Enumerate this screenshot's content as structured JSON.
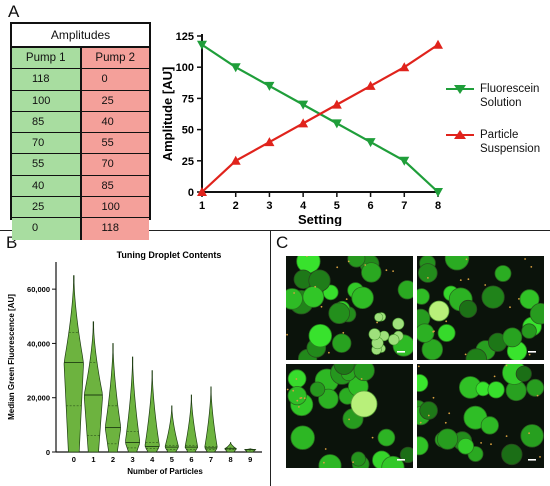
{
  "panels": {
    "a": "A",
    "b": "B",
    "c": "C"
  },
  "table": {
    "title": "Amplitudes",
    "headers": [
      "Pump 1",
      "Pump 2"
    ],
    "rows": [
      [
        "118",
        "0"
      ],
      [
        "100",
        "25"
      ],
      [
        "85",
        "40"
      ],
      [
        "70",
        "55"
      ],
      [
        "55",
        "70"
      ],
      [
        "40",
        "85"
      ],
      [
        "25",
        "100"
      ],
      [
        "0",
        "118"
      ]
    ],
    "colors": {
      "pump1": "#a8dda0",
      "pump2": "#f4a09a"
    }
  },
  "chart_data": [
    {
      "type": "line",
      "title": "",
      "xlabel": "Setting",
      "ylabel": "Amplitude [AU]",
      "x": [
        1,
        2,
        3,
        4,
        5,
        6,
        7,
        8
      ],
      "xlim": [
        1,
        8
      ],
      "ylim": [
        0,
        125
      ],
      "yticks": [
        0,
        25,
        50,
        75,
        100,
        125
      ],
      "grid": false,
      "legend_placement": "right",
      "series": [
        {
          "name": "Fluorescein Solution",
          "values": [
            118,
            100,
            85,
            70,
            55,
            40,
            25,
            0
          ],
          "color": "#1f9e3a",
          "marker": "triangle-down"
        },
        {
          "name": "Particle Suspension",
          "values": [
            0,
            25,
            40,
            55,
            70,
            85,
            100,
            118
          ],
          "color": "#e0231c",
          "marker": "triangle-up"
        }
      ]
    },
    {
      "type": "violin",
      "title": "Tuning Droplet Contents",
      "xlabel": "Number of Particles",
      "ylabel": "Median Green Fluorescence [AU]",
      "categories": [
        "0",
        "1",
        "2",
        "3",
        "4",
        "5",
        "6",
        "7",
        "8",
        "9"
      ],
      "ylim": [
        0,
        70000
      ],
      "yticks": [
        "0",
        "20,000",
        "40,000",
        "60,000"
      ],
      "ytick_values": [
        0,
        20000,
        40000,
        60000
      ],
      "max": [
        65000,
        48000,
        40000,
        35000,
        30000,
        17000,
        21000,
        24000,
        3500,
        1200
      ],
      "median": [
        33000,
        21000,
        9000,
        3500,
        2000,
        1800,
        1800,
        1500,
        1200,
        900
      ],
      "q1": [
        17000,
        6000,
        3000,
        1500,
        1200,
        1000,
        1000,
        1000,
        900,
        700
      ],
      "q3": [
        44000,
        33000,
        17000,
        7500,
        3500,
        2500,
        2500,
        2000,
        1500,
        1000
      ],
      "width": [
        1.0,
        0.95,
        0.8,
        0.75,
        0.75,
        0.7,
        0.65,
        0.65,
        0.6,
        0.55
      ],
      "color": "#6db33f"
    }
  ]
}
